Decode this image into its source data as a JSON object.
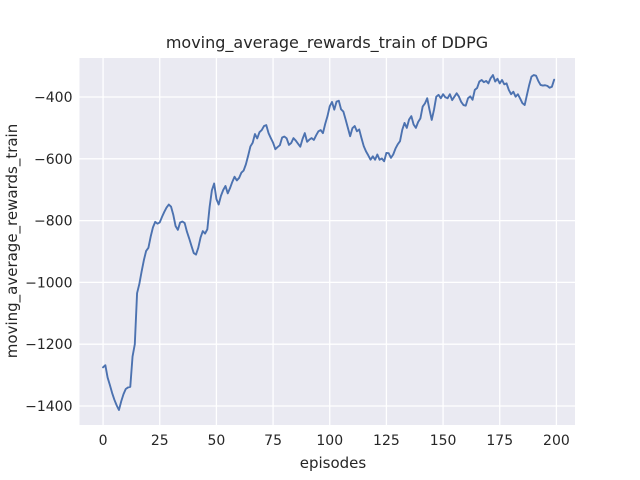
{
  "figure": {
    "title": "moving_average_rewards_train of DDPG",
    "xlabel": "episodes",
    "ylabel": "moving_average_rewards_train"
  },
  "chart_data": {
    "type": "line",
    "title": "moving_average_rewards_train of DDPG",
    "xlabel": "episodes",
    "ylabel": "moving_average_rewards_train",
    "x_ticks": [
      0,
      25,
      50,
      75,
      100,
      125,
      150,
      175,
      200
    ],
    "y_ticks": [
      -400,
      -600,
      -800,
      -1000,
      -1200,
      -1400
    ],
    "xlim": [
      -10.4,
      208.2
    ],
    "ylim": [
      -1461.5,
      -273.8
    ],
    "grid": true,
    "legend": false,
    "bg_color": "#eaeaf2",
    "grid_color": "#ffffff",
    "line_color": "#4c72b0",
    "series": [
      {
        "name": "moving_average_rewards_train",
        "x_start": 0,
        "x_step": 1,
        "y": [
          -1275,
          -1268,
          -1308,
          -1332,
          -1358,
          -1380,
          -1398,
          -1413,
          -1385,
          -1362,
          -1345,
          -1340,
          -1338,
          -1240,
          -1200,
          -1035,
          -1005,
          -965,
          -928,
          -898,
          -888,
          -852,
          -822,
          -804,
          -810,
          -806,
          -788,
          -772,
          -758,
          -748,
          -755,
          -782,
          -818,
          -830,
          -806,
          -803,
          -808,
          -836,
          -858,
          -882,
          -905,
          -910,
          -888,
          -855,
          -834,
          -842,
          -828,
          -756,
          -702,
          -680,
          -730,
          -748,
          -720,
          -701,
          -688,
          -712,
          -695,
          -675,
          -658,
          -670,
          -662,
          -645,
          -638,
          -618,
          -590,
          -560,
          -548,
          -520,
          -534,
          -514,
          -507,
          -494,
          -491,
          -517,
          -533,
          -548,
          -569,
          -562,
          -556,
          -531,
          -528,
          -534,
          -555,
          -549,
          -533,
          -541,
          -551,
          -561,
          -536,
          -517,
          -545,
          -538,
          -533,
          -539,
          -524,
          -511,
          -507,
          -517,
          -487,
          -462,
          -430,
          -416,
          -441,
          -415,
          -412,
          -440,
          -447,
          -473,
          -500,
          -527,
          -501,
          -494,
          -511,
          -505,
          -533,
          -559,
          -576,
          -589,
          -603,
          -592,
          -603,
          -586,
          -603,
          -599,
          -608,
          -581,
          -582,
          -597,
          -586,
          -567,
          -553,
          -543,
          -506,
          -484,
          -500,
          -473,
          -462,
          -489,
          -500,
          -481,
          -469,
          -431,
          -421,
          -404,
          -441,
          -474,
          -441,
          -399,
          -393,
          -404,
          -391,
          -401,
          -404,
          -391,
          -410,
          -399,
          -388,
          -399,
          -416,
          -426,
          -428,
          -404,
          -398,
          -409,
          -377,
          -371,
          -350,
          -345,
          -352,
          -348,
          -356,
          -339,
          -329,
          -350,
          -341,
          -356,
          -345,
          -359,
          -356,
          -377,
          -391,
          -383,
          -399,
          -391,
          -405,
          -420,
          -426,
          -393,
          -361,
          -334,
          -329,
          -331,
          -348,
          -361,
          -363,
          -362,
          -364,
          -370,
          -367,
          -344
        ]
      }
    ]
  }
}
